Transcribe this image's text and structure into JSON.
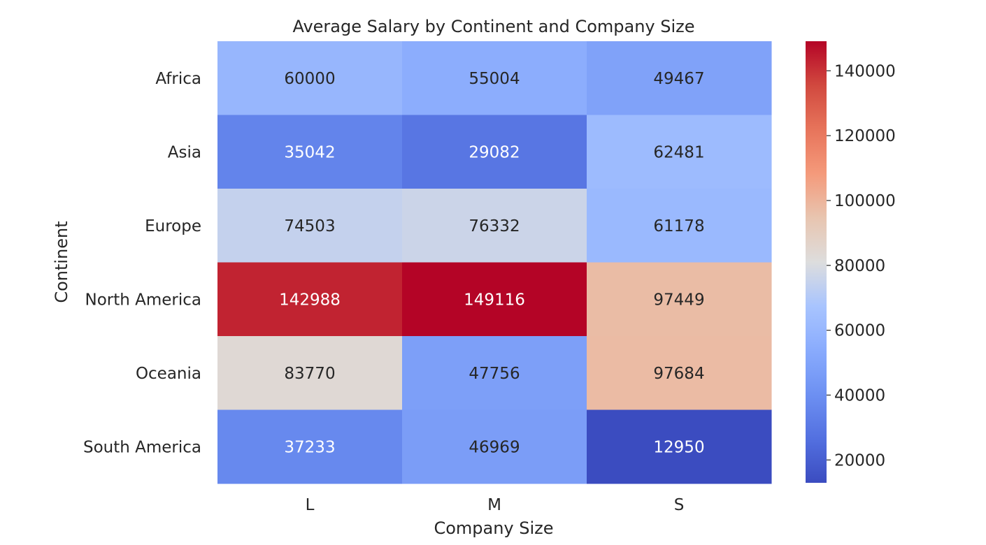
{
  "chart_data": {
    "type": "heatmap",
    "title": "Average Salary by Continent and Company Size",
    "xlabel": "Company Size",
    "ylabel": "Continent",
    "x_categories": [
      "L",
      "M",
      "S"
    ],
    "y_categories": [
      "Africa",
      "Asia",
      "Europe",
      "North America",
      "Oceania",
      "South America"
    ],
    "values": [
      [
        60000,
        55004,
        49467
      ],
      [
        35042,
        29082,
        62481
      ],
      [
        74503,
        76332,
        61178
      ],
      [
        142988,
        149116,
        97449
      ],
      [
        83770,
        47756,
        97684
      ],
      [
        37233,
        46969,
        12950
      ]
    ],
    "value_labels": [
      [
        "60000",
        "55004",
        "49467"
      ],
      [
        "35042",
        "29082",
        "62481"
      ],
      [
        "74503",
        "76332",
        "61178"
      ],
      [
        "142988",
        "149116",
        "97449"
      ],
      [
        "83770",
        "47756",
        "97684"
      ],
      [
        "37233",
        "46969",
        "12950"
      ]
    ],
    "colormap": "coolwarm",
    "vmin": 12950,
    "vmax": 149116,
    "colorbar_ticks": [
      20000,
      40000,
      60000,
      80000,
      100000,
      120000,
      140000
    ],
    "colorbar_tick_labels": [
      "20000",
      "40000",
      "60000",
      "80000",
      "100000",
      "120000",
      "140000"
    ],
    "colorbar_placement": "right",
    "grid": false
  }
}
